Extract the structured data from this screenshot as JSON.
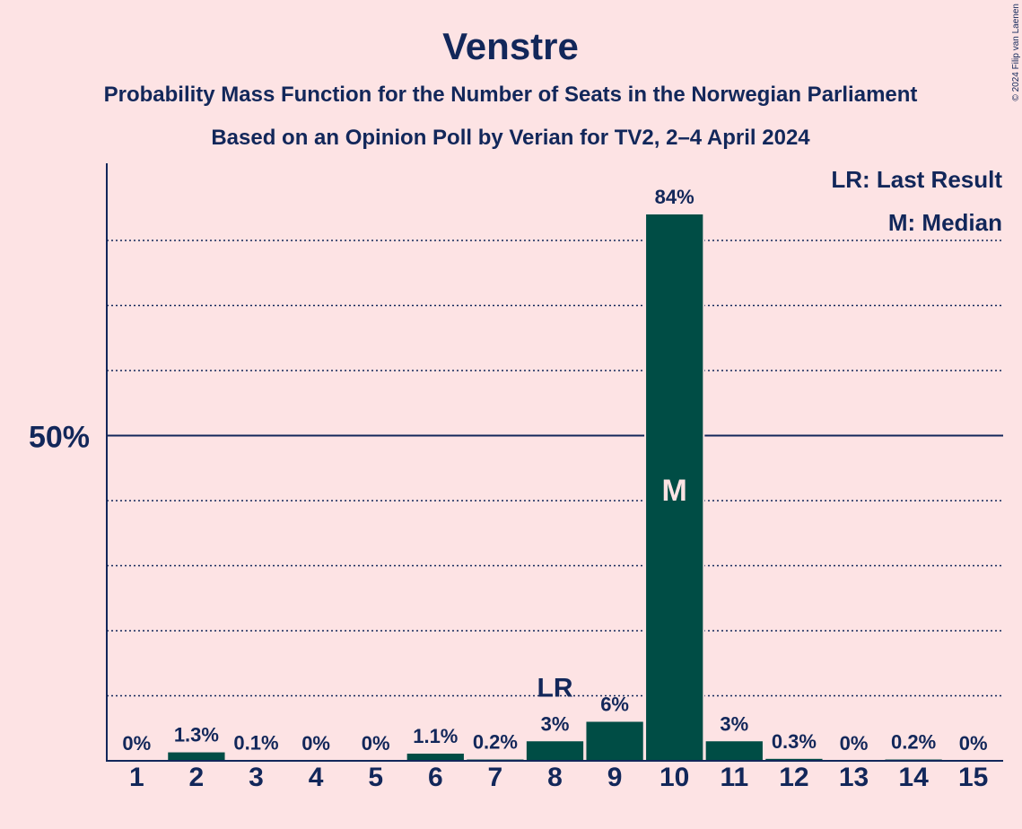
{
  "chart_data": {
    "type": "bar",
    "title": "Venstre",
    "subtitle_lines": [
      "Probability Mass Function for the Number of Seats in the Norwegian Parliament",
      "Based on an Opinion Poll by Verian for TV2, 2–4 April 2024"
    ],
    "copyright": "© 2024 Filip van Laenen",
    "categories": [
      "1",
      "2",
      "3",
      "4",
      "5",
      "6",
      "7",
      "8",
      "9",
      "10",
      "11",
      "12",
      "13",
      "14",
      "15"
    ],
    "values": [
      0,
      1.3,
      0.1,
      0,
      0,
      1.1,
      0.2,
      3,
      6,
      84,
      3,
      0.3,
      0,
      0.2,
      0
    ],
    "value_labels": [
      "0%",
      "1.3%",
      "0.1%",
      "0%",
      "0%",
      "1.1%",
      "0.2%",
      "3%",
      "6%",
      "84%",
      "3%",
      "0.3%",
      "0%",
      "0.2%",
      "0%"
    ],
    "ylim": [
      0,
      92
    ],
    "ytick_label": "50%",
    "ytick_value": 50,
    "minor_gridlines": [
      10,
      20,
      30,
      40,
      60,
      70,
      80
    ],
    "last_result": {
      "category": "8",
      "label": "LR"
    },
    "median": {
      "category": "10",
      "label": "M"
    },
    "legend": {
      "position": "top-right",
      "items": [
        "LR: Last Result",
        "M: Median"
      ]
    },
    "colors": {
      "background": "#fde3e4",
      "bar": "#004d45",
      "text": "#12275a"
    }
  }
}
